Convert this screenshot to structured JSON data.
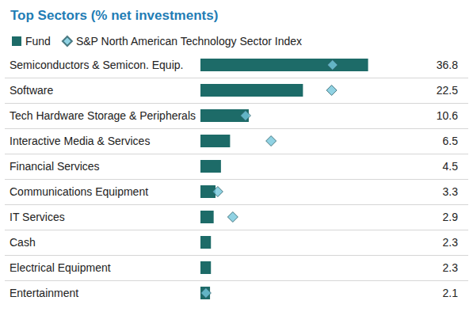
{
  "chart_data": {
    "type": "bar",
    "title": "Top Sectors (% net investments)",
    "orientation": "horizontal",
    "categories": [
      "Semiconductors & Semicon. Equip.",
      "Software",
      "Tech Hardware Storage & Peripherals",
      "Interactive Media & Services",
      "Financial Services",
      "Communications Equipment",
      "IT Services",
      "Cash",
      "Electrical Equipment",
      "Entertainment"
    ],
    "series": [
      {
        "name": "Fund",
        "type": "bar",
        "color": "#1d6b68",
        "values": [
          36.8,
          22.5,
          10.6,
          6.5,
          4.5,
          3.3,
          2.9,
          2.3,
          2.3,
          2.1
        ]
      },
      {
        "name": "S&P North American Technology Sector Index",
        "type": "scatter",
        "marker": "diamond",
        "color": "#74c7dc",
        "values": [
          29.0,
          28.8,
          9.9,
          15.5,
          null,
          3.8,
          7.1,
          null,
          null,
          1.2
        ]
      }
    ],
    "xlim": [
      0,
      40
    ],
    "tick_labels": false,
    "grid": false,
    "legend": "top-left",
    "data_labels": true
  }
}
